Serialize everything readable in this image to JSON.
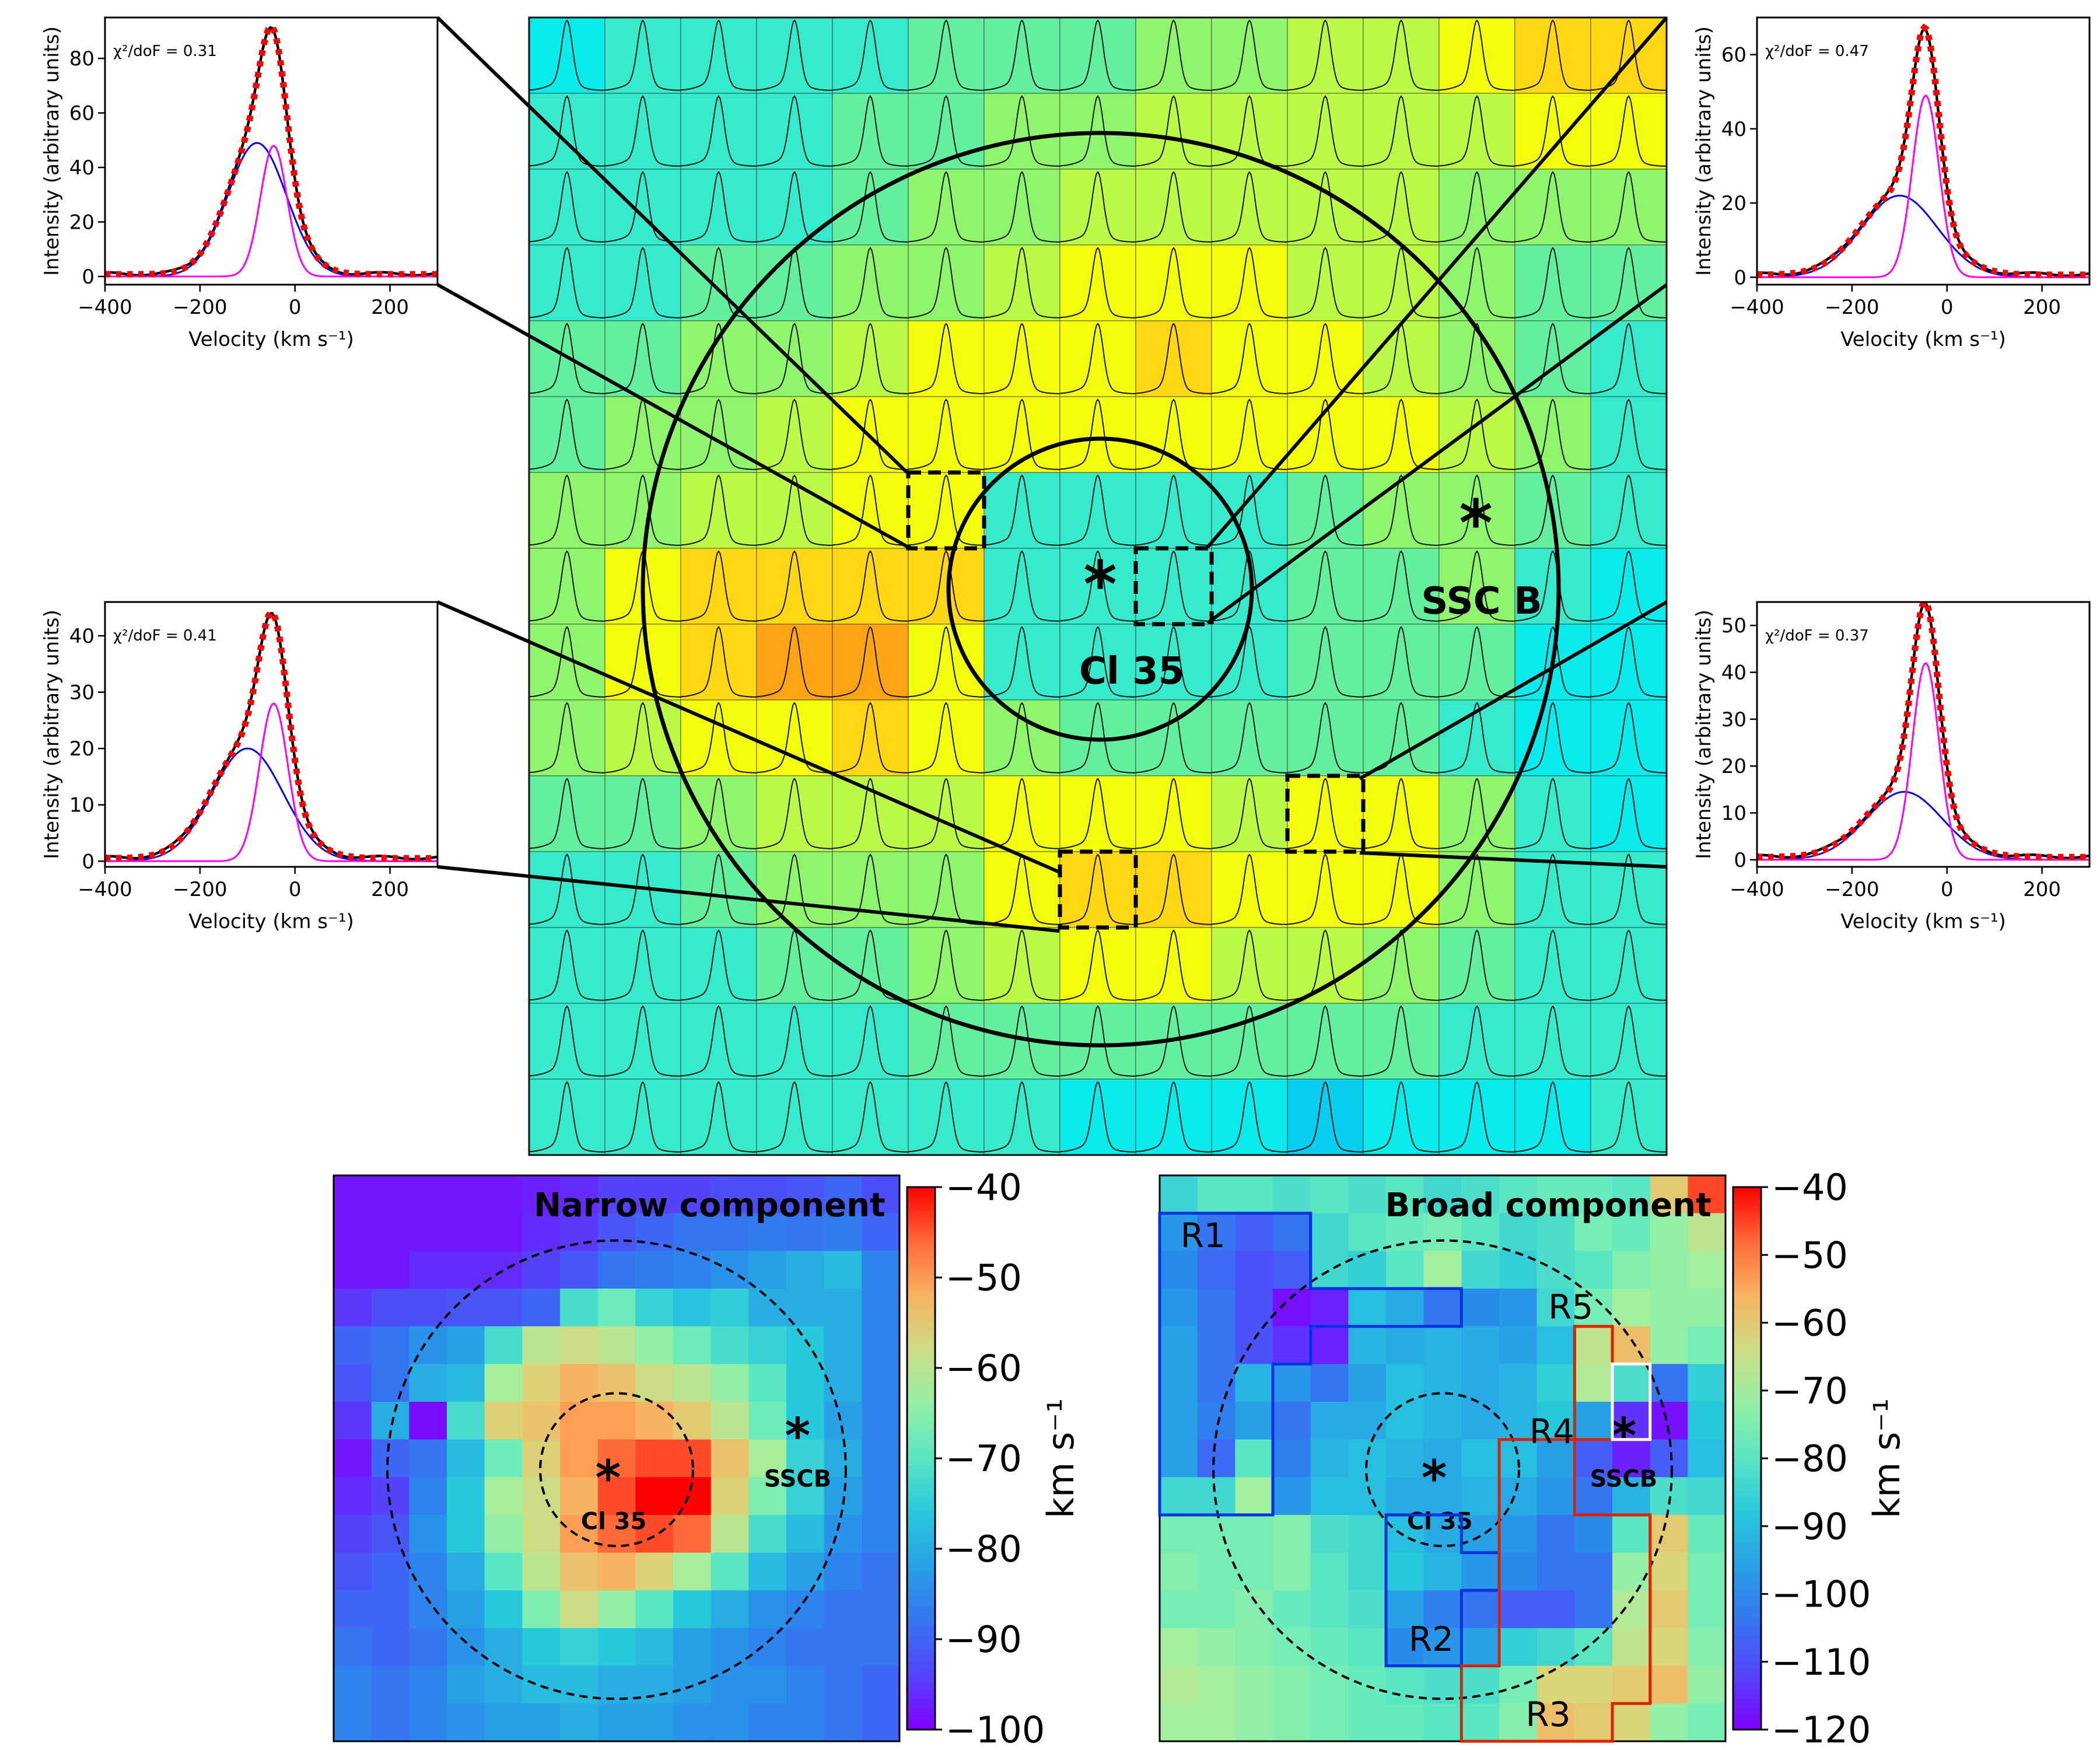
{
  "colors": {
    "observed": "#000000",
    "broad_fit": "#0000ff",
    "narrow_fit": "#ff00ff",
    "total_fit": "#ff0000",
    "region_blue": "#0033dd",
    "region_red": "#dd2200",
    "region_white": "#ffffff"
  },
  "chart_data": [
    {
      "type": "line",
      "panel": "top-left spectrum",
      "title": "",
      "chi2_label": "χ²/doF = 0.31",
      "xlabel": "Velocity (km s⁻¹)",
      "ylabel": "Intensity (arbitrary units)",
      "xlim": [
        -400,
        300
      ],
      "ylim": [
        -3,
        95
      ],
      "xticks": [
        -400,
        -200,
        0,
        200
      ],
      "yticks": [
        0,
        20,
        40,
        60,
        80
      ],
      "components": {
        "broad": {
          "amplitude": 49,
          "center": -80,
          "sigma": 62
        },
        "narrow": {
          "amplitude": 48,
          "center": -45,
          "sigma": 28
        }
      },
      "series": [
        {
          "name": "Observed",
          "color": "#000000",
          "style": "solid"
        },
        {
          "name": "Broad component",
          "color": "#0000ff",
          "style": "solid"
        },
        {
          "name": "Narrow component",
          "color": "#ff00ff",
          "style": "solid"
        },
        {
          "name": "Total fit",
          "color": "#ff0000",
          "style": "dotted"
        }
      ]
    },
    {
      "type": "line",
      "panel": "top-right spectrum",
      "title": "",
      "chi2_label": "χ²/doF = 0.47",
      "xlabel": "Velocity (km s⁻¹)",
      "ylabel": "Intensity (arbitrary units)",
      "xlim": [
        -400,
        300
      ],
      "ylim": [
        -2,
        70
      ],
      "xticks": [
        -400,
        -200,
        0,
        200
      ],
      "yticks": [
        0,
        20,
        40,
        60
      ],
      "components": {
        "broad": {
          "amplitude": 22,
          "center": -100,
          "sigma": 80
        },
        "narrow": {
          "amplitude": 49,
          "center": -45,
          "sigma": 28
        }
      },
      "series": [
        {
          "name": "Observed",
          "color": "#000000",
          "style": "solid"
        },
        {
          "name": "Broad component",
          "color": "#0000ff",
          "style": "solid"
        },
        {
          "name": "Narrow component",
          "color": "#ff00ff",
          "style": "solid"
        },
        {
          "name": "Total fit",
          "color": "#ff0000",
          "style": "dotted"
        }
      ]
    },
    {
      "type": "line",
      "panel": "bottom-left spectrum",
      "title": "",
      "chi2_label": "χ²/doF = 0.41",
      "xlabel": "Velocity (km s⁻¹)",
      "ylabel": "Intensity (arbitrary units)",
      "xlim": [
        -400,
        300
      ],
      "ylim": [
        -1,
        46
      ],
      "xticks": [
        -400,
        -200,
        0,
        200
      ],
      "yticks": [
        0,
        10,
        20,
        30,
        40
      ],
      "components": {
        "broad": {
          "amplitude": 20,
          "center": -100,
          "sigma": 75
        },
        "narrow": {
          "amplitude": 28,
          "center": -45,
          "sigma": 30
        }
      },
      "series": [
        {
          "name": "Observed",
          "color": "#000000",
          "style": "solid"
        },
        {
          "name": "Broad component",
          "color": "#0000ff",
          "style": "solid"
        },
        {
          "name": "Narrow component",
          "color": "#ff00ff",
          "style": "solid"
        },
        {
          "name": "Total fit",
          "color": "#ff0000",
          "style": "dotted"
        }
      ]
    },
    {
      "type": "line",
      "panel": "bottom-right spectrum",
      "title": "",
      "chi2_label": "χ²/doF = 0.37",
      "xlabel": "Velocity (km s⁻¹)",
      "ylabel": "Intensity (arbitrary units)",
      "xlim": [
        -400,
        300
      ],
      "ylim": [
        -1.5,
        55
      ],
      "xticks": [
        -400,
        -200,
        0,
        200
      ],
      "yticks": [
        0,
        10,
        20,
        30,
        40,
        50
      ],
      "components": {
        "broad": {
          "amplitude": 14.5,
          "center": -90,
          "sigma": 80
        },
        "narrow": {
          "amplitude": 42,
          "center": -45,
          "sigma": 28
        }
      },
      "series": [
        {
          "name": "Observed",
          "color": "#000000",
          "style": "solid"
        },
        {
          "name": "Broad component",
          "color": "#0000ff",
          "style": "solid"
        },
        {
          "name": "Narrow component",
          "color": "#ff00ff",
          "style": "solid"
        },
        {
          "name": "Total fit",
          "color": "#ff0000",
          "style": "dotted"
        }
      ]
    },
    {
      "type": "heatmap",
      "panel": "central spectral grid",
      "title": "",
      "rows": 15,
      "cols": 15,
      "cell_content": "spectrum profile in each spaxel",
      "values": [
        [
          2,
          3,
          3,
          3,
          3,
          4,
          4,
          4,
          5,
          5,
          6,
          6,
          7,
          8,
          8
        ],
        [
          3,
          3,
          3,
          3,
          4,
          4,
          5,
          5,
          6,
          6,
          6,
          6,
          6,
          7,
          7
        ],
        [
          3,
          3,
          3,
          3,
          4,
          5,
          5,
          6,
          6,
          6,
          6,
          6,
          5,
          5,
          5
        ],
        [
          3,
          3,
          4,
          4,
          5,
          5,
          6,
          7,
          7,
          7,
          6,
          6,
          5,
          4,
          4
        ],
        [
          4,
          4,
          5,
          5,
          6,
          7,
          7,
          7,
          8,
          7,
          7,
          6,
          5,
          4,
          3
        ],
        [
          4,
          5,
          5,
          6,
          7,
          7,
          7,
          7,
          7,
          7,
          7,
          7,
          6,
          5,
          3
        ],
        [
          5,
          5,
          6,
          6,
          7,
          7,
          3,
          3,
          3,
          3,
          4,
          5,
          5,
          4,
          3
        ],
        [
          5,
          7,
          8,
          8,
          8,
          8,
          3,
          3,
          3,
          3,
          4,
          4,
          5,
          3,
          2
        ],
        [
          5,
          7,
          8,
          9,
          9,
          7,
          3,
          3,
          3,
          3,
          4,
          4,
          4,
          2,
          2
        ],
        [
          5,
          6,
          7,
          7,
          8,
          7,
          5,
          4,
          4,
          4,
          4,
          4,
          3,
          2,
          2
        ],
        [
          4,
          4,
          5,
          6,
          6,
          6,
          7,
          7,
          7,
          6,
          7,
          7,
          5,
          3,
          2
        ],
        [
          3,
          3,
          4,
          5,
          5,
          5,
          7,
          8,
          8,
          7,
          7,
          7,
          5,
          3,
          3
        ],
        [
          3,
          3,
          3,
          4,
          4,
          5,
          6,
          7,
          7,
          6,
          6,
          5,
          4,
          3,
          3
        ],
        [
          3,
          3,
          3,
          3,
          3,
          4,
          4,
          4,
          4,
          4,
          4,
          4,
          3,
          3,
          3
        ],
        [
          3,
          3,
          3,
          3,
          3,
          3,
          3,
          2,
          2,
          2,
          1,
          2,
          2,
          2,
          3
        ]
      ],
      "labels": [
        "Cl 35",
        "SSC B"
      ],
      "highlighted_spaxels": [
        {
          "row": 6,
          "col": 5
        },
        {
          "row": 7,
          "col": 8
        },
        {
          "row": 11,
          "col": 7
        },
        {
          "row": 10,
          "col": 10
        }
      ]
    },
    {
      "type": "heatmap",
      "panel": "narrow component map",
      "title": "Narrow component",
      "colorbar_label": "km s⁻¹",
      "vmin": -100,
      "vmax": -40,
      "colorbar_ticks": [
        -40,
        -50,
        -60,
        -70,
        -80,
        -90,
        -100
      ],
      "values": [
        [
          -98,
          -98,
          -98,
          -98,
          -98,
          -97,
          -96,
          -94,
          -94,
          -94,
          -93,
          -93,
          -92,
          -90,
          -93
        ],
        [
          -98,
          -98,
          -98,
          -98,
          -98,
          -96,
          -95,
          -92,
          -90,
          -88,
          -88,
          -87,
          -88,
          -87,
          -90
        ],
        [
          -98,
          -98,
          -96,
          -96,
          -96,
          -94,
          -92,
          -88,
          -87,
          -86,
          -84,
          -82,
          -80,
          -78,
          -86
        ],
        [
          -95,
          -93,
          -93,
          -92,
          -92,
          -90,
          -72,
          -68,
          -74,
          -77,
          -75,
          -80,
          -80,
          -80,
          -86
        ],
        [
          -90,
          -88,
          -84,
          -82,
          -72,
          -60,
          -58,
          -60,
          -64,
          -68,
          -72,
          -74,
          -76,
          -80,
          -86
        ],
        [
          -92,
          -88,
          -80,
          -78,
          -62,
          -56,
          -52,
          -54,
          -58,
          -60,
          -64,
          -70,
          -76,
          -80,
          -86
        ],
        [
          -95,
          -80,
          -99,
          -72,
          -56,
          -54,
          -50,
          -50,
          -52,
          -55,
          -60,
          -68,
          -76,
          -82,
          -86
        ],
        [
          -98,
          -90,
          -88,
          -78,
          -68,
          -56,
          -50,
          -46,
          -44,
          -44,
          -54,
          -62,
          -74,
          -80,
          -86
        ],
        [
          -96,
          -94,
          -86,
          -76,
          -62,
          -58,
          -52,
          -44,
          -40,
          -40,
          -56,
          -66,
          -74,
          -82,
          -86
        ],
        [
          -94,
          -92,
          -84,
          -76,
          -64,
          -58,
          -50,
          -46,
          -44,
          -46,
          -60,
          -72,
          -78,
          -84,
          -86
        ],
        [
          -92,
          -90,
          -86,
          -80,
          -70,
          -60,
          -54,
          -52,
          -56,
          -62,
          -70,
          -78,
          -82,
          -86,
          -88
        ],
        [
          -90,
          -90,
          -86,
          -82,
          -76,
          -66,
          -58,
          -64,
          -70,
          -76,
          -80,
          -84,
          -86,
          -88,
          -88
        ],
        [
          -88,
          -90,
          -88,
          -84,
          -80,
          -76,
          -74,
          -76,
          -78,
          -82,
          -84,
          -86,
          -88,
          -88,
          -88
        ],
        [
          -86,
          -88,
          -86,
          -82,
          -80,
          -78,
          -78,
          -80,
          -80,
          -82,
          -84,
          -84,
          -86,
          -88,
          -90
        ],
        [
          -86,
          -88,
          -86,
          -84,
          -82,
          -82,
          -80,
          -82,
          -82,
          -84,
          -84,
          -86,
          -86,
          -88,
          -90
        ]
      ],
      "labels": [
        "Cl 35",
        "SSCB"
      ]
    },
    {
      "type": "heatmap",
      "panel": "broad component map",
      "title": "Broad component",
      "colorbar_label": "km s⁻¹",
      "vmin": -120,
      "vmax": -40,
      "colorbar_ticks": [
        -40,
        -50,
        -60,
        -70,
        -80,
        -90,
        -100,
        -110,
        -120
      ],
      "values": [
        [
          -85,
          -80,
          -80,
          -82,
          -80,
          -82,
          -80,
          -84,
          -82,
          -80,
          -78,
          -78,
          -80,
          -60,
          -45
        ],
        [
          -98,
          -104,
          -108,
          -104,
          -84,
          -80,
          -78,
          -76,
          -80,
          -84,
          -82,
          -76,
          -78,
          -72,
          -66
        ],
        [
          -100,
          -106,
          -110,
          -108,
          -84,
          -86,
          -80,
          -70,
          -84,
          -86,
          -82,
          -80,
          -74,
          -72,
          -70
        ],
        [
          -98,
          -104,
          -110,
          -118,
          -116,
          -90,
          -94,
          -104,
          -100,
          -98,
          -84,
          -76,
          -70,
          -72,
          -72
        ],
        [
          -96,
          -104,
          -110,
          -114,
          -116,
          -92,
          -94,
          -92,
          -94,
          -96,
          -90,
          -66,
          -58,
          -72,
          -76
        ],
        [
          -96,
          -104,
          -92,
          -98,
          -104,
          -96,
          -90,
          -92,
          -94,
          -92,
          -86,
          -68,
          -82,
          -104,
          -86
        ],
        [
          -96,
          -102,
          -96,
          -104,
          -94,
          -94,
          -90,
          -92,
          -94,
          -92,
          -88,
          -96,
          -114,
          -118,
          -88
        ],
        [
          -96,
          -106,
          -80,
          -102,
          -92,
          -90,
          -92,
          -94,
          -90,
          -90,
          -96,
          -108,
          -116,
          -108,
          -90
        ],
        [
          -84,
          -84,
          -70,
          -98,
          -90,
          -90,
          -94,
          -94,
          -92,
          -94,
          -98,
          -104,
          -92,
          -82,
          -84
        ],
        [
          -76,
          -76,
          -76,
          -74,
          -82,
          -84,
          -90,
          -94,
          -96,
          -98,
          -104,
          -100,
          -80,
          -60,
          -78
        ],
        [
          -74,
          -76,
          -76,
          -74,
          -80,
          -84,
          -88,
          -92,
          -98,
          -100,
          -104,
          -104,
          -72,
          -62,
          -76
        ],
        [
          -76,
          -76,
          -74,
          -78,
          -80,
          -82,
          -96,
          -102,
          -104,
          -108,
          -108,
          -104,
          -68,
          -60,
          -76
        ],
        [
          -70,
          -72,
          -74,
          -76,
          -78,
          -80,
          -100,
          -98,
          -96,
          -86,
          -84,
          -80,
          -66,
          -62,
          -74
        ],
        [
          -68,
          -70,
          -72,
          -74,
          -76,
          -78,
          -80,
          -82,
          -82,
          -76,
          -62,
          -62,
          -60,
          -58,
          -72
        ],
        [
          -70,
          -70,
          -72,
          -74,
          -76,
          -78,
          -78,
          -80,
          -80,
          -74,
          -58,
          -60,
          -62,
          -72,
          -76
        ]
      ],
      "labels": [
        "Cl 35",
        "SSCB"
      ],
      "regions": [
        "R1",
        "R2",
        "R3",
        "R4",
        "R5"
      ]
    }
  ]
}
